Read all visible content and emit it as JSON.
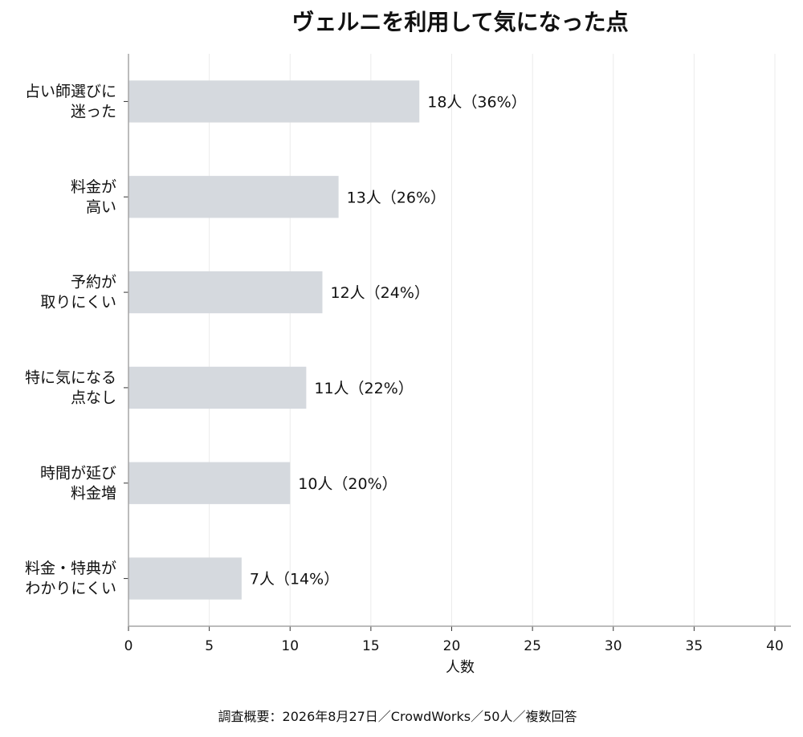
{
  "chart_data": {
    "type": "bar",
    "orientation": "horizontal",
    "title": "ヴェルニを利用して気になった点",
    "xlabel": "人数",
    "ylabel": "",
    "categories": [
      [
        "占い師選びに",
        "迷った"
      ],
      [
        "料金が",
        "高い"
      ],
      [
        "予約が",
        "取りにくい"
      ],
      [
        "特に気になる",
        "点なし"
      ],
      [
        "時間が延び",
        "料金増"
      ],
      [
        "料金・特典が",
        "わかりにくい"
      ]
    ],
    "values": [
      18,
      13,
      12,
      11,
      10,
      7
    ],
    "data_labels": [
      "18人（36%）",
      "13人（26%）",
      "12人（24%）",
      "11人（22%）",
      "10人（20%）",
      "7人（14%）"
    ],
    "xlim": [
      0,
      40
    ],
    "xticks": [
      0,
      5,
      10,
      15,
      20,
      25,
      30,
      35,
      40
    ],
    "grid": "vertical",
    "colors": {
      "bar": "#d5d9de",
      "grid": "#ebebeb",
      "axis": "#a6a6a6",
      "text": "#111111"
    }
  },
  "footnote": "調査概要：2026年8月27日／CrowdWorks／50人／複数回答"
}
